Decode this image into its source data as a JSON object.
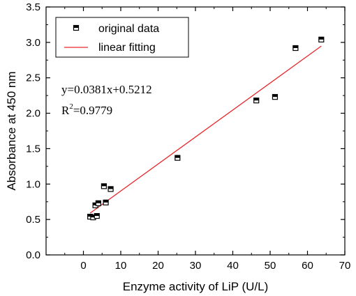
{
  "chart_data": {
    "type": "scatter",
    "title": "",
    "xlabel": "Enzyme activity of LiP (U/L)",
    "ylabel": "Absorbance at 450 nm",
    "xlim": [
      -10,
      70
    ],
    "ylim": [
      0.0,
      3.5
    ],
    "xticks": [
      0,
      10,
      20,
      30,
      40,
      50,
      60,
      70
    ],
    "yticks": [
      0.0,
      0.5,
      1.0,
      1.5,
      2.0,
      2.5,
      3.0,
      3.5
    ],
    "xtick_labels": [
      "0",
      "10",
      "20",
      "30",
      "40",
      "50",
      "60",
      "70"
    ],
    "ytick_labels": [
      "0.0",
      "0.5",
      "1.0",
      "1.5",
      "2.0",
      "2.5",
      "3.0",
      "3.5"
    ],
    "grid": false,
    "legend_position": "top-left",
    "series": [
      {
        "name": "original data",
        "kind": "scatter",
        "color": "#000000",
        "points": [
          {
            "x": 1.8,
            "y": 0.54
          },
          {
            "x": 2.6,
            "y": 0.53
          },
          {
            "x": 3.2,
            "y": 0.7
          },
          {
            "x": 3.6,
            "y": 0.55
          },
          {
            "x": 4.0,
            "y": 0.73
          },
          {
            "x": 5.5,
            "y": 0.97
          },
          {
            "x": 6.0,
            "y": 0.74
          },
          {
            "x": 7.3,
            "y": 0.93
          },
          {
            "x": 25.2,
            "y": 1.37
          },
          {
            "x": 46.3,
            "y": 2.18
          },
          {
            "x": 51.3,
            "y": 2.23
          },
          {
            "x": 56.8,
            "y": 2.92
          },
          {
            "x": 63.7,
            "y": 3.04
          }
        ]
      },
      {
        "name": "linear fitting",
        "kind": "line",
        "color": "#e8262a",
        "slope": 0.0381,
        "intercept": 0.5212,
        "x_range": [
          1.8,
          63.7
        ]
      }
    ],
    "annotations": {
      "equation": "y=0.0381x+0.5212",
      "r2_prefix": "R",
      "r2_sup": "2",
      "r2_value": "=0.9779"
    }
  }
}
